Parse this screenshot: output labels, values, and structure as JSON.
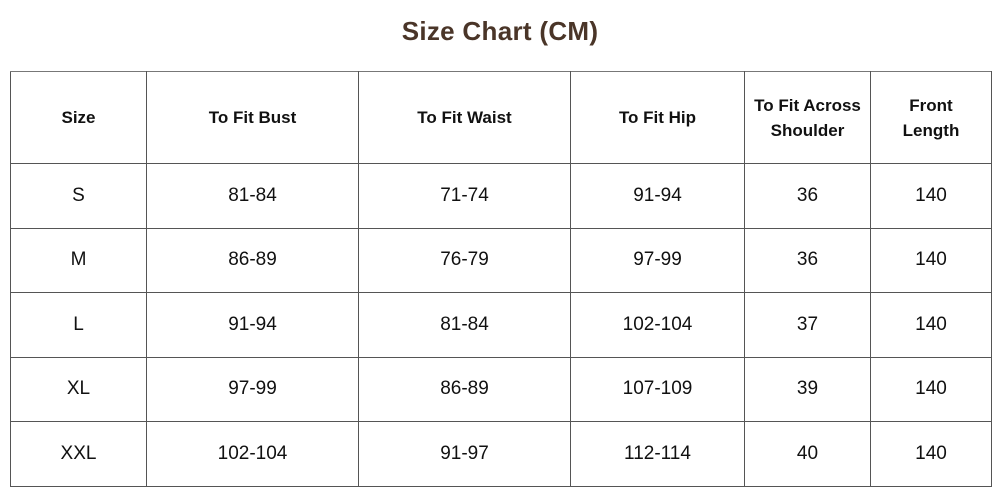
{
  "title": "Size Chart (CM)",
  "colors": {
    "title": "#4a3528",
    "border": "#555555"
  },
  "headers": [
    "Size",
    "To Fit Bust",
    "To Fit Waist",
    "To Fit Hip",
    "To Fit Across Shoulder",
    "Front Length"
  ],
  "rows": [
    [
      "S",
      "81-84",
      "71-74",
      "91-94",
      "36",
      "140"
    ],
    [
      "M",
      "86-89",
      "76-79",
      "97-99",
      "36",
      "140"
    ],
    [
      "L",
      "91-94",
      "81-84",
      "102-104",
      "37",
      "140"
    ],
    [
      "XL",
      "97-99",
      "86-89",
      "107-109",
      "39",
      "140"
    ],
    [
      "XXL",
      "102-104",
      "91-97",
      "112-114",
      "40",
      "140"
    ]
  ]
}
